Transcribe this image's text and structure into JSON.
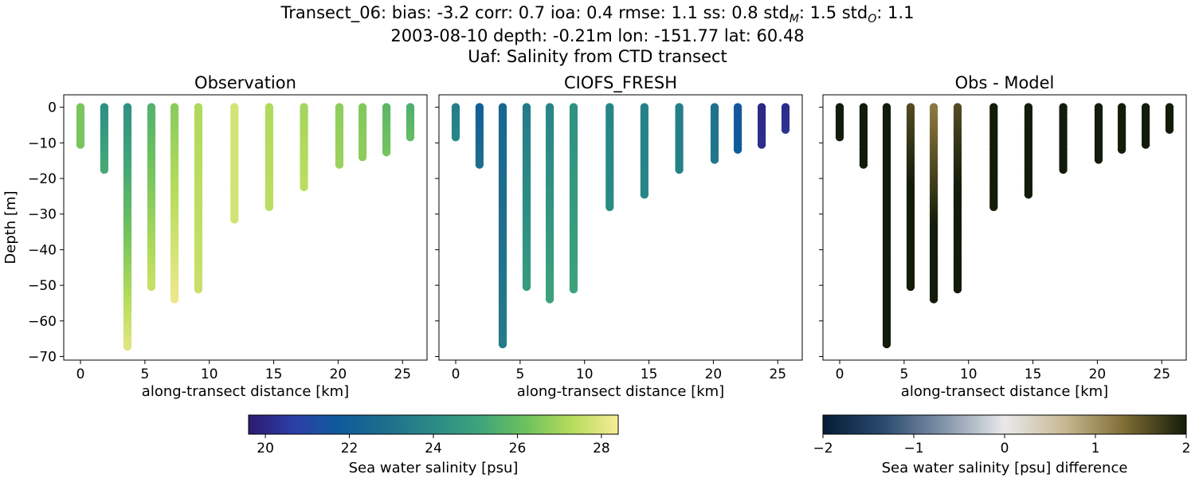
{
  "title": {
    "line1_prefix": "Transect_06: bias: -3.2  corr: 0.7  ioa: 0.4  rmse: 1.1  ss: 0.8  std",
    "std_model_sub": "M",
    "std_model_value": ": 1.5  std",
    "std_obs_sub": "O",
    "std_obs_value": ": 1.1",
    "line2": "2003-08-10 depth: -0.21m lon: -151.77 lat: 60.48",
    "line3": "Uaf: Salinity from CTD transect"
  },
  "colors": {
    "axis": "#000000",
    "salinity_colormap": [
      "#2e1a6e",
      "#2c3fa8",
      "#0e5c9a",
      "#1f6f8c",
      "#2a8a86",
      "#3ea47a",
      "#6dc15e",
      "#b6dc5c",
      "#f7ec95"
    ],
    "difference_colormap": [
      "#041c36",
      "#2a4a6e",
      "#8193a8",
      "#e9e9ea",
      "#c7b892",
      "#7d6b33",
      "#131c0a"
    ]
  },
  "chart_data": [
    {
      "type": "scatter",
      "title": "Observation",
      "xlabel": "along-transect distance [km]",
      "ylabel": "Depth [m]",
      "xlim": [
        -1.3,
        26.9
      ],
      "ylim": [
        -71,
        3.5
      ],
      "xticks": [
        0,
        5,
        10,
        15,
        20,
        25
      ],
      "yticks": [
        0,
        -10,
        -20,
        -30,
        -40,
        -50,
        -60,
        -70
      ],
      "profiles": [
        {
          "x": 0.0,
          "bottom": -11,
          "top": 26.4,
          "bot": 26.4
        },
        {
          "x": 1.85,
          "bottom": -17.5,
          "top": 24.2,
          "bot": 25.3
        },
        {
          "x": 3.65,
          "bottom": -67.5,
          "top": 24.3,
          "bot": 28.0
        },
        {
          "x": 5.5,
          "bottom": -51,
          "top": 25.6,
          "bot": 27.6
        },
        {
          "x": 7.3,
          "bottom": -54.5,
          "top": 26.6,
          "bot": 28.2
        },
        {
          "x": 9.15,
          "bottom": -51.5,
          "top": 27.2,
          "bot": 27.6
        },
        {
          "x": 11.95,
          "bottom": -31.5,
          "top": 27.8,
          "bot": 27.8
        },
        {
          "x": 14.65,
          "bottom": -28,
          "top": 27.2,
          "bot": 27.4
        },
        {
          "x": 17.35,
          "bottom": -22.5,
          "top": 27.0,
          "bot": 27.4
        },
        {
          "x": 20.1,
          "bottom": -16.5,
          "top": 26.7,
          "bot": 26.9
        },
        {
          "x": 21.9,
          "bottom": -14,
          "top": 26.5,
          "bot": 26.7
        },
        {
          "x": 23.75,
          "bottom": -13,
          "top": 25.8,
          "bot": 26.3
        },
        {
          "x": 25.6,
          "bottom": -9,
          "top": 25.5,
          "bot": 26.0
        }
      ]
    },
    {
      "type": "scatter",
      "title": "CIOFS_FRESH",
      "xlabel": "along-transect distance [km]",
      "xlim": [
        -1.3,
        26.9
      ],
      "ylim": [
        -71,
        3.5
      ],
      "xticks": [
        0,
        5,
        10,
        15,
        20,
        25
      ],
      "profiles": [
        {
          "x": 0.0,
          "bottom": -9,
          "top": 23.5,
          "bot": 23.8
        },
        {
          "x": 1.85,
          "bottom": -16.5,
          "top": 22.0,
          "bot": 22.8
        },
        {
          "x": 3.65,
          "bottom": -67,
          "top": 22.4,
          "bot": 23.4
        },
        {
          "x": 5.5,
          "bottom": -51,
          "top": 23.4,
          "bot": 24.7
        },
        {
          "x": 7.3,
          "bottom": -54.5,
          "top": 23.8,
          "bot": 25.0
        },
        {
          "x": 9.15,
          "bottom": -51.5,
          "top": 24.3,
          "bot": 25.0
        },
        {
          "x": 11.95,
          "bottom": -28.5,
          "top": 23.8,
          "bot": 24.0
        },
        {
          "x": 14.65,
          "bottom": -25,
          "top": 23.6,
          "bot": 23.8
        },
        {
          "x": 17.35,
          "bottom": -17.5,
          "top": 23.5,
          "bot": 23.6
        },
        {
          "x": 20.1,
          "bottom": -15,
          "top": 23.0,
          "bot": 23.2
        },
        {
          "x": 21.9,
          "bottom": -12.5,
          "top": 21.6,
          "bot": 21.8
        },
        {
          "x": 23.75,
          "bottom": -11,
          "top": 20.0,
          "bot": 20.2
        },
        {
          "x": 25.6,
          "bottom": -7,
          "top": 20.1,
          "bot": 20.3
        }
      ]
    },
    {
      "type": "scatter",
      "title": "Obs - Model",
      "xlabel": "along-transect distance [km]",
      "xlim": [
        -1.3,
        26.9
      ],
      "ylim": [
        -71,
        3.5
      ],
      "xticks": [
        0,
        5,
        10,
        15,
        20,
        25
      ],
      "profiles": [
        {
          "x": 0.0,
          "bottom": -9,
          "top": 2.5,
          "bot": 2.5
        },
        {
          "x": 1.85,
          "bottom": -16.5,
          "top": 2.5,
          "bot": 2.5
        },
        {
          "x": 3.65,
          "bottom": -67,
          "top": 2.5,
          "bot": 2.3
        },
        {
          "x": 5.5,
          "bottom": -51,
          "top": 1.6,
          "bot": 2.5
        },
        {
          "x": 7.3,
          "bottom": -54.5,
          "top": 1.2,
          "bot": 2.5
        },
        {
          "x": 9.15,
          "bottom": -51.5,
          "top": 1.6,
          "bot": 2.5
        },
        {
          "x": 11.95,
          "bottom": -28.5,
          "top": 2.5,
          "bot": 2.5
        },
        {
          "x": 14.65,
          "bottom": -25,
          "top": 2.5,
          "bot": 2.5
        },
        {
          "x": 17.35,
          "bottom": -17.5,
          "top": 2.5,
          "bot": 2.5
        },
        {
          "x": 20.1,
          "bottom": -15,
          "top": 2.5,
          "bot": 2.5
        },
        {
          "x": 21.9,
          "bottom": -12.5,
          "top": 2.5,
          "bot": 2.5
        },
        {
          "x": 23.75,
          "bottom": -11,
          "top": 2.5,
          "bot": 2.5
        },
        {
          "x": 25.6,
          "bottom": -7,
          "top": 2.5,
          "bot": 2.5
        }
      ]
    }
  ],
  "colorbars": [
    {
      "label": "Sea water salinity [psu]",
      "range": [
        19.6,
        28.4
      ],
      "ticks": [
        "20",
        "22",
        "24",
        "26",
        "28"
      ],
      "tick_values": [
        20,
        22,
        24,
        26,
        28
      ]
    },
    {
      "label": "Sea water salinity [psu] difference",
      "range": [
        -2,
        2
      ],
      "ticks": [
        "−2",
        "−1",
        "0",
        "1",
        "2"
      ],
      "tick_values": [
        -2,
        -1,
        0,
        1,
        2
      ]
    }
  ]
}
